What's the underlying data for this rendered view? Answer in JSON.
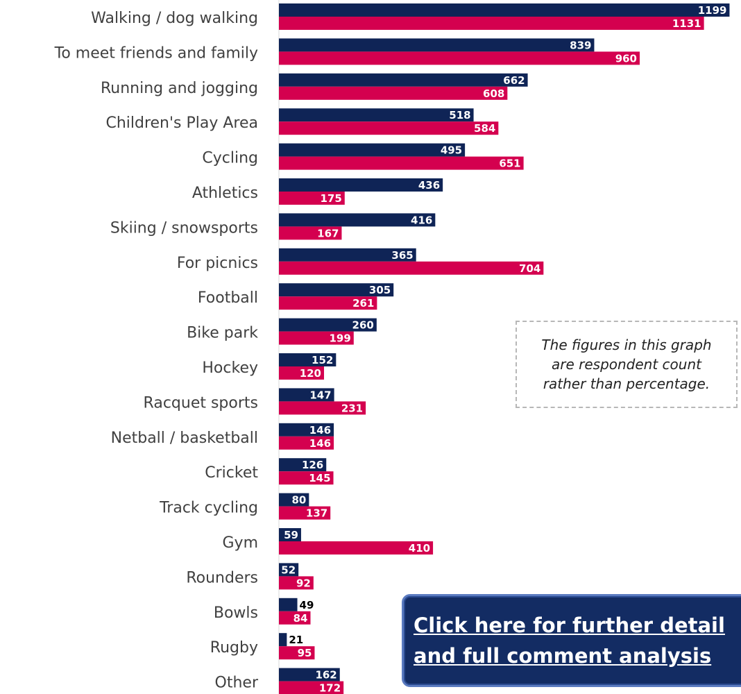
{
  "chart_data": {
    "type": "bar",
    "orientation": "horizontal",
    "categories": [
      "Walking / dog walking",
      "To meet friends and family",
      "Running and jogging",
      "Children's Play Area",
      "Cycling",
      "Athletics",
      "Skiing / snowsports",
      "For picnics",
      "Football",
      "Bike park",
      "Hockey",
      "Racquet sports",
      "Netball / basketball",
      "Cricket",
      "Track cycling",
      "Gym",
      "Rounders",
      "Bowls",
      "Rugby",
      "Other"
    ],
    "series": [
      {
        "values": [
          1199,
          839,
          662,
          518,
          495,
          436,
          416,
          365,
          305,
          260,
          152,
          147,
          146,
          126,
          80,
          59,
          52,
          49,
          21,
          162
        ],
        "color": "#0f2456"
      },
      {
        "values": [
          1131,
          960,
          608,
          584,
          651,
          175,
          167,
          704,
          261,
          199,
          120,
          231,
          146,
          145,
          137,
          410,
          92,
          84,
          95,
          172
        ],
        "color": "#d4004f"
      }
    ],
    "title": "",
    "xlabel": "",
    "ylabel": "",
    "xlim": [
      0,
      1200
    ],
    "grid": false,
    "legend": "none"
  },
  "note": {
    "text": "The figures in this graph\nare respondent count\nrather than percentage."
  },
  "cta": {
    "line1": "Click here for further detail",
    "line2": "and full comment analysis"
  }
}
